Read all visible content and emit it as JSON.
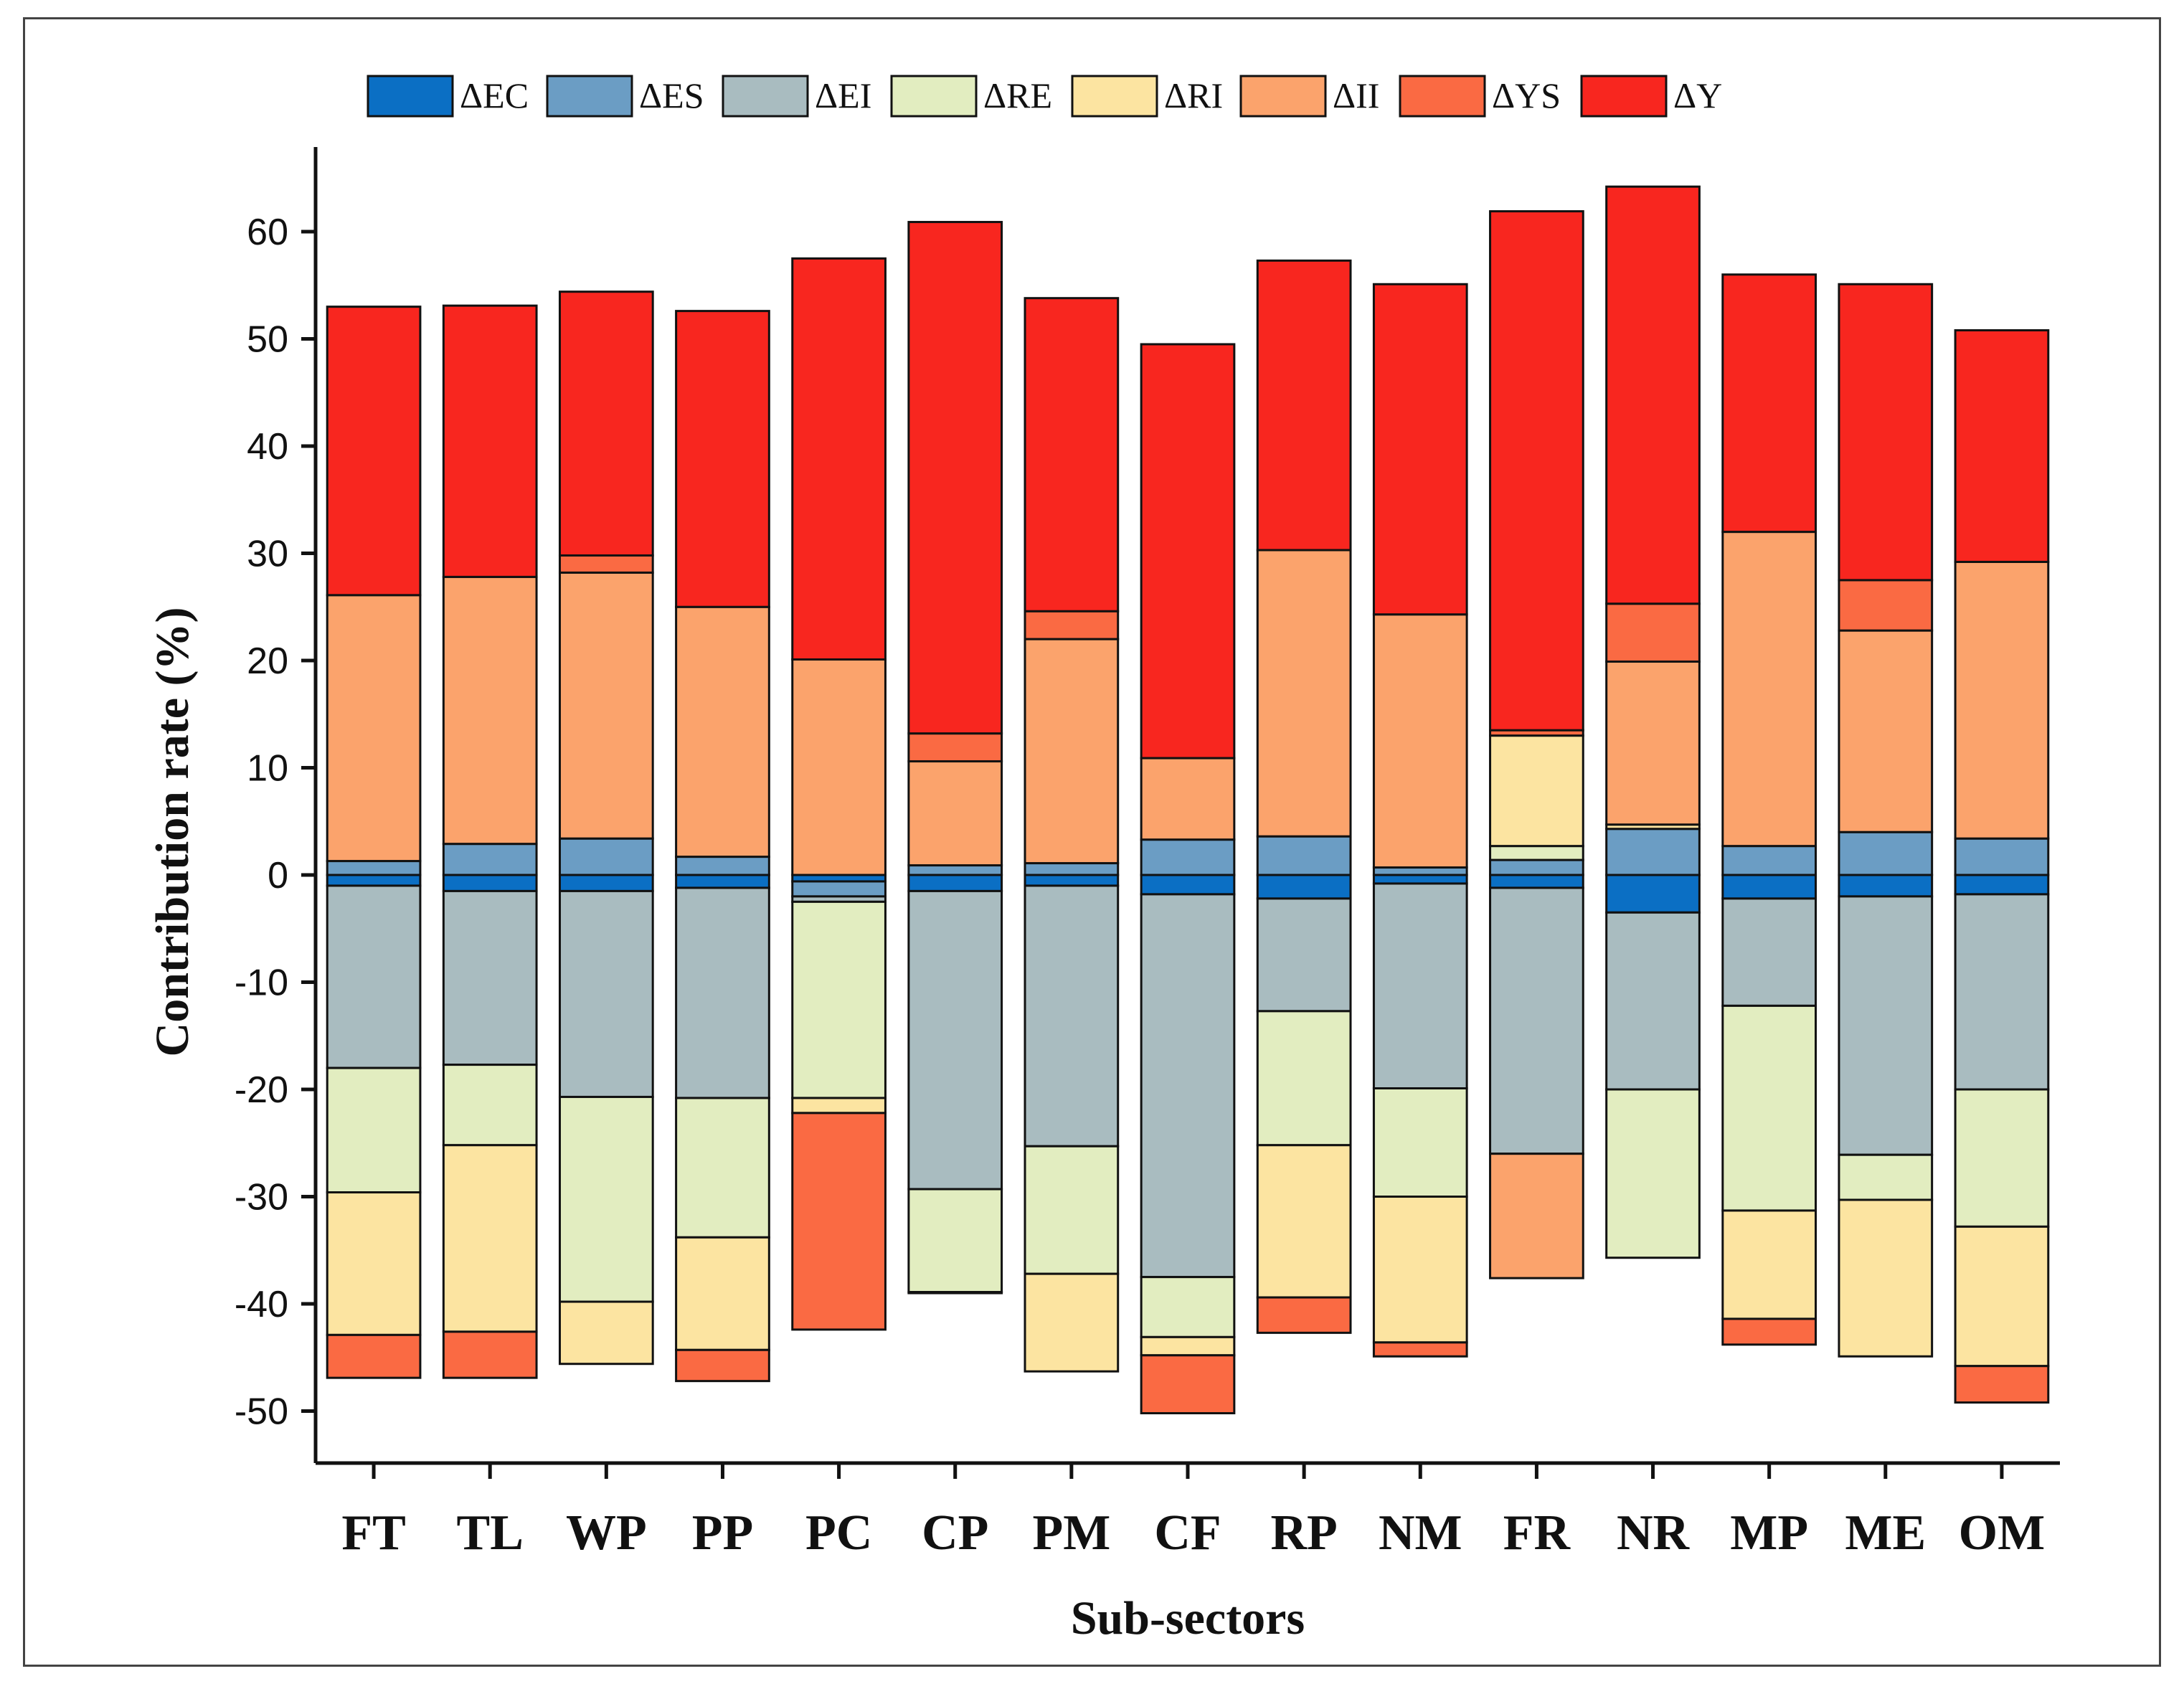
{
  "chart_data": {
    "type": "bar",
    "stacked": true,
    "xlabel": "Sub-sectors",
    "ylabel": "Contribution rate (%)",
    "ylim": [
      -55,
      70
    ],
    "yticks": [
      60,
      50,
      40,
      30,
      20,
      10,
      0,
      -10,
      -20,
      -30,
      -40,
      -50
    ],
    "ytick_labels": [
      "60",
      "50",
      "40",
      "30",
      "20",
      "10",
      "0",
      "-10",
      "-20",
      "-30",
      "-40",
      "-50"
    ],
    "legend_position": "top",
    "categories": [
      "FT",
      "TL",
      "WP",
      "PP",
      "PC",
      "CP",
      "PM",
      "CF",
      "RP",
      "NM",
      "FR",
      "NR",
      "MP",
      "ME",
      "OM"
    ],
    "series": [
      {
        "name": "ΔEC",
        "color": "#0B6FC4",
        "values": [
          -1.0,
          -1.5,
          -1.5,
          -1.2,
          -0.6,
          -1.5,
          -1.0,
          -1.8,
          -2.2,
          -0.8,
          -1.2,
          -3.5,
          -2.2,
          -2.0,
          -1.8
        ]
      },
      {
        "name": "ΔES",
        "color": "#6B9DC4",
        "values": [
          1.3,
          2.9,
          3.4,
          1.7,
          -1.4,
          0.9,
          1.1,
          3.3,
          3.6,
          0.7,
          1.4,
          4.3,
          2.7,
          4.0,
          3.4
        ]
      },
      {
        "name": "ΔEI",
        "color": "#A9BCC0",
        "values": [
          -17.0,
          -16.2,
          -19.2,
          -19.6,
          -0.5,
          -27.8,
          -24.3,
          -35.7,
          -10.5,
          -19.1,
          -24.8,
          -16.5,
          -10.0,
          -24.1,
          -18.2
        ]
      },
      {
        "name": "ΔRE",
        "color": "#E2EDC0",
        "values": [
          -11.6,
          -7.5,
          -19.1,
          -13.0,
          -18.3,
          -9.6,
          -11.9,
          -5.6,
          -12.5,
          -10.1,
          1.3,
          -15.7,
          -19.1,
          -4.2,
          -12.8
        ]
      },
      {
        "name": "ΔRI",
        "color": "#FCE4A1",
        "values": [
          -13.3,
          -17.4,
          -5.8,
          -10.5,
          -1.4,
          -0.1,
          -9.1,
          -1.7,
          -14.2,
          -13.6,
          10.3,
          0.4,
          -10.1,
          -14.6,
          -13.0
        ]
      },
      {
        "name": "ΔII",
        "color": "#FBA36C",
        "values": [
          24.8,
          24.9,
          24.8,
          23.3,
          20.1,
          9.7,
          20.9,
          7.6,
          26.7,
          23.6,
          -11.6,
          15.2,
          29.3,
          18.8,
          25.8
        ]
      },
      {
        "name": "ΔYS",
        "color": "#FA6A43",
        "values": [
          -4.0,
          -4.3,
          1.6,
          -2.9,
          -20.2,
          2.6,
          2.6,
          -5.4,
          -3.3,
          -1.3,
          0.5,
          5.4,
          -2.4,
          4.7,
          -3.4
        ]
      },
      {
        "name": "ΔY",
        "color": "#F8261F",
        "values": [
          26.9,
          25.3,
          24.6,
          27.6,
          37.4,
          47.7,
          29.2,
          38.6,
          27.0,
          30.8,
          48.4,
          38.9,
          24.0,
          27.6,
          21.6
        ]
      }
    ]
  }
}
